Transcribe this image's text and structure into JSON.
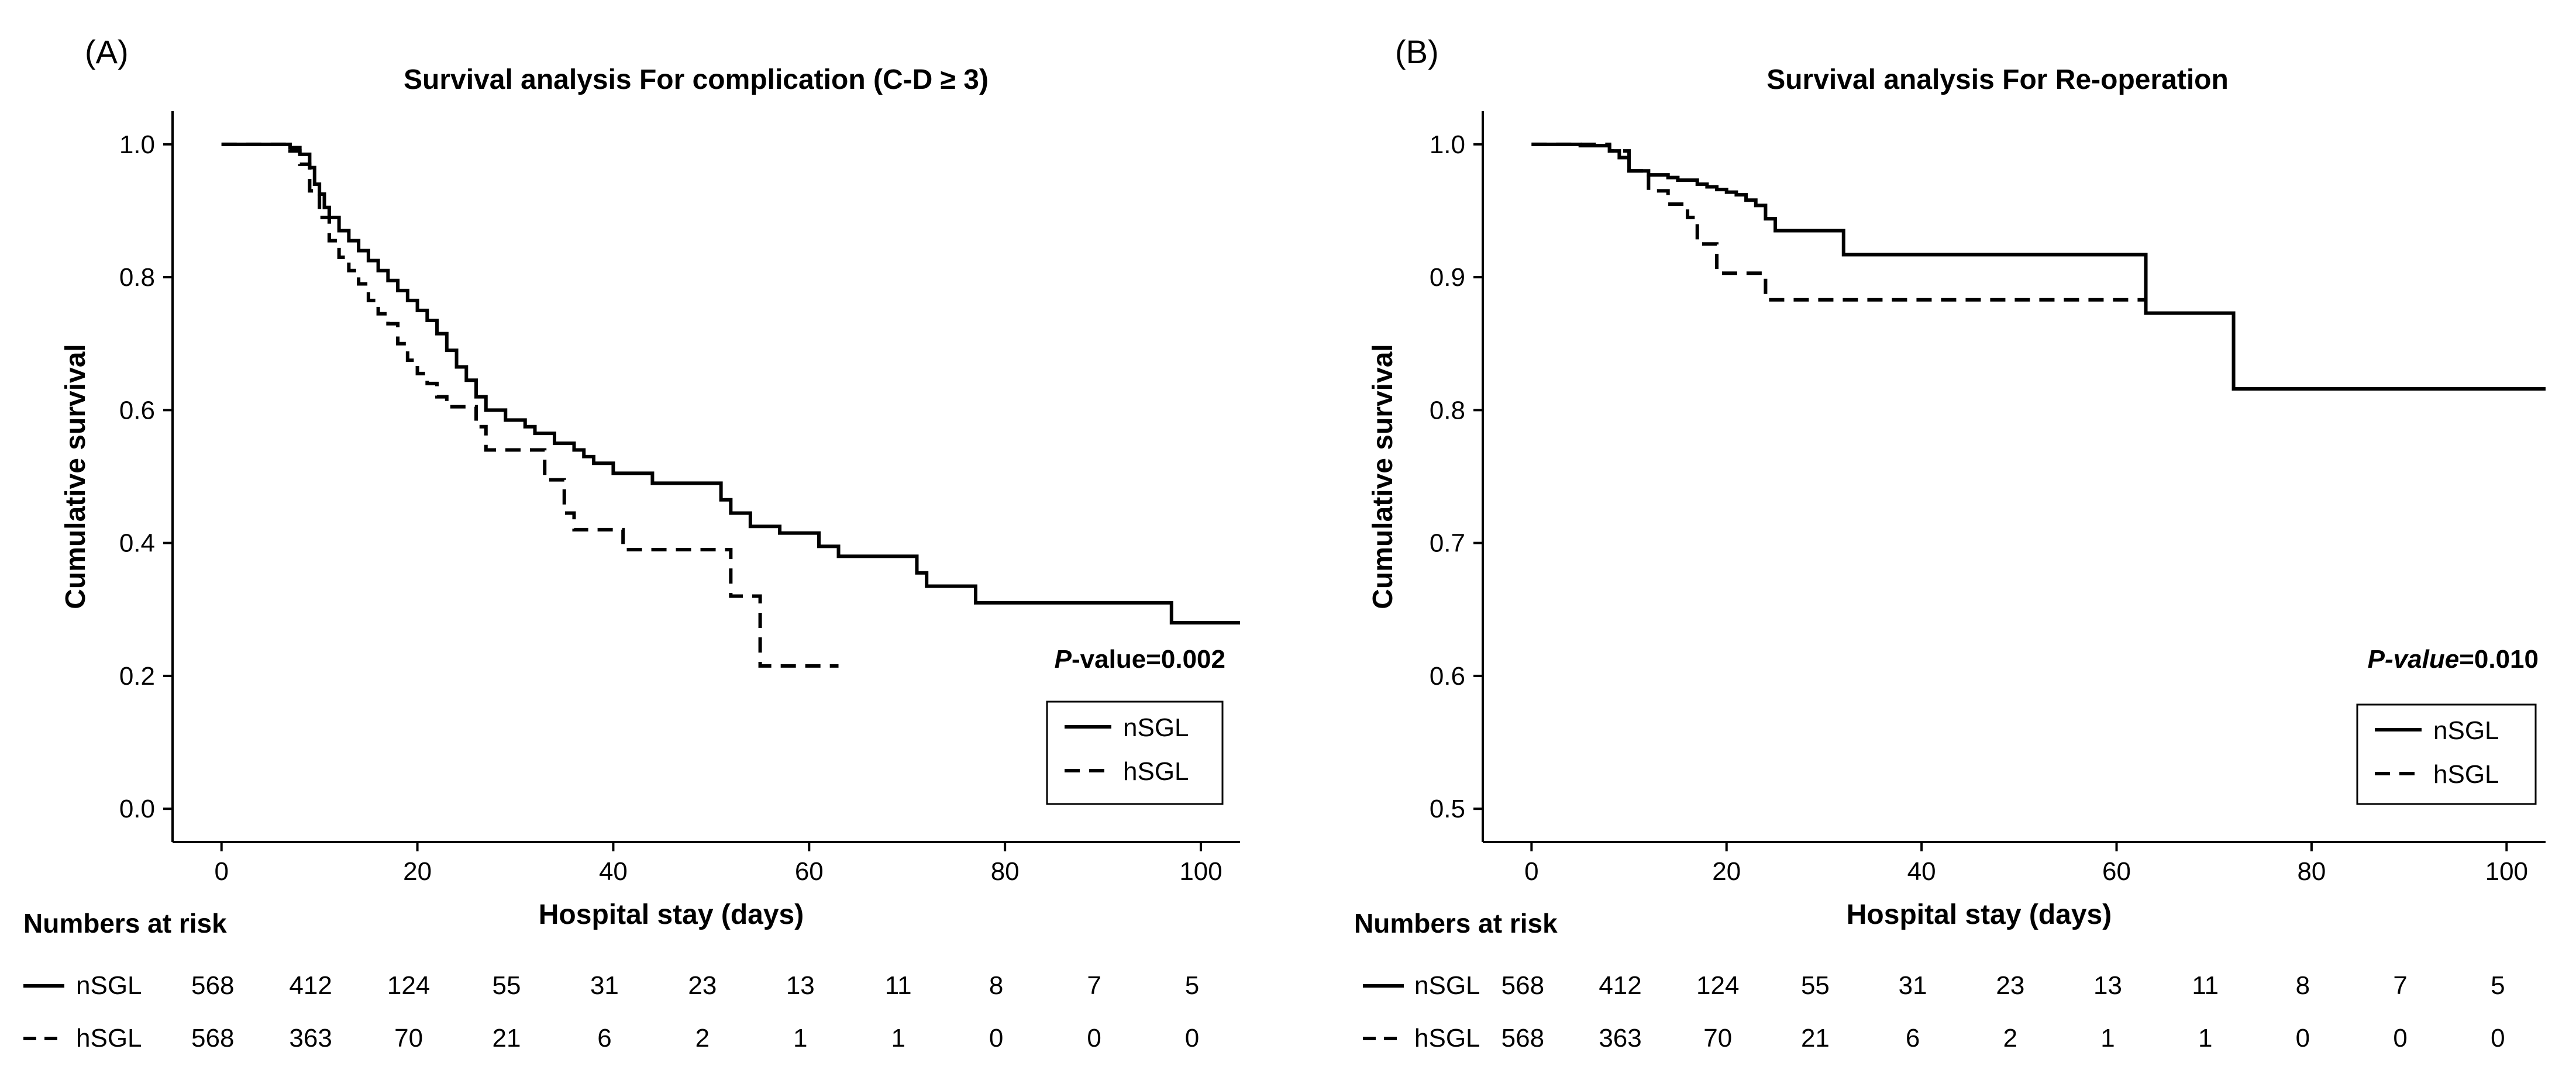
{
  "chart_data": [
    {
      "type": "line",
      "subtype": "kaplan-meier",
      "panel_label": "(A)",
      "title": "Survival analysis For complication (C-D ≥ 3)",
      "xlabel": "Hospital stay (days)",
      "ylabel": "Cumulative survival",
      "xlim": [
        -5,
        104
      ],
      "ylim": [
        -0.05,
        1.05
      ],
      "xticks": [
        0,
        20,
        40,
        60,
        80,
        100
      ],
      "xtick_labels": [
        "0",
        "20",
        "40",
        "60",
        "80",
        "100"
      ],
      "yticks": [
        0.0,
        0.2,
        0.4,
        0.6,
        0.8,
        1.0
      ],
      "ytick_labels": [
        "0.0",
        "0.2",
        "0.4",
        "0.6",
        "0.8",
        "1.0"
      ],
      "pvalue_prefix": "P",
      "pvalue_suffix": "-value=0.002",
      "legend": [
        {
          "name": "nSGL",
          "style": "solid"
        },
        {
          "name": "hSGL",
          "style": "dashed"
        }
      ],
      "series": [
        {
          "name": "nSGL",
          "style": "solid",
          "steps": [
            [
              0,
              1.0
            ],
            [
              7,
              0.995
            ],
            [
              8,
              0.985
            ],
            [
              9,
              0.965
            ],
            [
              9.5,
              0.94
            ],
            [
              10,
              0.925
            ],
            [
              10.5,
              0.905
            ],
            [
              11,
              0.89
            ],
            [
              12,
              0.87
            ],
            [
              13,
              0.855
            ],
            [
              14,
              0.84
            ],
            [
              15,
              0.825
            ],
            [
              16,
              0.81
            ],
            [
              17,
              0.795
            ],
            [
              18,
              0.78
            ],
            [
              19,
              0.765
            ],
            [
              20,
              0.75
            ],
            [
              21,
              0.735
            ],
            [
              22,
              0.715
            ],
            [
              23,
              0.69
            ],
            [
              24,
              0.665
            ],
            [
              25,
              0.645
            ],
            [
              26,
              0.62
            ],
            [
              27,
              0.6
            ],
            [
              29,
              0.585
            ],
            [
              31,
              0.575
            ],
            [
              32,
              0.565
            ],
            [
              34,
              0.55
            ],
            [
              36,
              0.54
            ],
            [
              37,
              0.53
            ],
            [
              38,
              0.52
            ],
            [
              40,
              0.505
            ],
            [
              44,
              0.49
            ],
            [
              51,
              0.465
            ],
            [
              52,
              0.445
            ],
            [
              54,
              0.425
            ],
            [
              57,
              0.415
            ],
            [
              61,
              0.395
            ],
            [
              63,
              0.38
            ],
            [
              71,
              0.355
            ],
            [
              72,
              0.335
            ],
            [
              77,
              0.31
            ],
            [
              97,
              0.28
            ],
            [
              104,
              0.28
            ]
          ]
        },
        {
          "name": "hSGL",
          "style": "dashed",
          "steps": [
            [
              0,
              1.0
            ],
            [
              7,
              0.99
            ],
            [
              8,
              0.97
            ],
            [
              9,
              0.93
            ],
            [
              10,
              0.89
            ],
            [
              11,
              0.855
            ],
            [
              12,
              0.83
            ],
            [
              13,
              0.81
            ],
            [
              14,
              0.79
            ],
            [
              15,
              0.765
            ],
            [
              16,
              0.745
            ],
            [
              17,
              0.73
            ],
            [
              18,
              0.7
            ],
            [
              19,
              0.675
            ],
            [
              20,
              0.655
            ],
            [
              21,
              0.64
            ],
            [
              22,
              0.62
            ],
            [
              23,
              0.605
            ],
            [
              26,
              0.575
            ],
            [
              27,
              0.54
            ],
            [
              33,
              0.495
            ],
            [
              35,
              0.445
            ],
            [
              36,
              0.42
            ],
            [
              41,
              0.39
            ],
            [
              52,
              0.32
            ],
            [
              54,
              0.32
            ],
            [
              55,
              0.215
            ],
            [
              63,
              0.215
            ]
          ]
        }
      ],
      "risk_table": {
        "title": "Numbers at risk",
        "times": [
          0,
          10,
          20,
          30,
          40,
          50,
          60,
          70,
          80,
          90,
          100
        ],
        "rows": [
          {
            "name": "nSGL",
            "style": "solid",
            "values": [
              "568",
              "412",
              "124",
              "55",
              "31",
              "23",
              "13",
              "11",
              "8",
              "7",
              "5"
            ]
          },
          {
            "name": "hSGL",
            "style": "dashed",
            "values": [
              "568",
              "363",
              "70",
              "21",
              "6",
              "2",
              "1",
              "1",
              "0",
              "0",
              "0"
            ]
          }
        ]
      }
    },
    {
      "type": "line",
      "subtype": "kaplan-meier",
      "panel_label": "(B)",
      "title": "Survival analysis For Re-operation",
      "xlabel": "Hospital stay (days)",
      "ylabel": "Cumulative survival",
      "xlim": [
        -5,
        104
      ],
      "ylim": [
        0.475,
        1.025
      ],
      "xticks": [
        0,
        20,
        40,
        60,
        80,
        100
      ],
      "xtick_labels": [
        "0",
        "20",
        "40",
        "60",
        "80",
        "100"
      ],
      "yticks": [
        0.5,
        0.6,
        0.7,
        0.8,
        0.9,
        1.0
      ],
      "ytick_labels": [
        "0.5",
        "0.6",
        "0.7",
        "0.8",
        "0.9",
        "1.0"
      ],
      "pvalue_prefix": "P-value",
      "pvalue_suffix": "=0.010",
      "legend": [
        {
          "name": "nSGL",
          "style": "solid"
        },
        {
          "name": "hSGL",
          "style": "dashed"
        }
      ],
      "series": [
        {
          "name": "nSGL",
          "style": "solid",
          "steps": [
            [
              0,
              1.0
            ],
            [
              5,
              0.999
            ],
            [
              8,
              0.995
            ],
            [
              9,
              0.99
            ],
            [
              10,
              0.98
            ],
            [
              12,
              0.977
            ],
            [
              14,
              0.975
            ],
            [
              15,
              0.973
            ],
            [
              17,
              0.97
            ],
            [
              18,
              0.968
            ],
            [
              19,
              0.966
            ],
            [
              20,
              0.964
            ],
            [
              21,
              0.962
            ],
            [
              22,
              0.958
            ],
            [
              23,
              0.954
            ],
            [
              24,
              0.944
            ],
            [
              25,
              0.935
            ],
            [
              32,
              0.917
            ],
            [
              63,
              0.873
            ],
            [
              72,
              0.816
            ],
            [
              104,
              0.816
            ]
          ]
        },
        {
          "name": "hSGL",
          "style": "dashed",
          "steps": [
            [
              0,
              1.0
            ],
            [
              8,
              0.995
            ],
            [
              10,
              0.98
            ],
            [
              12,
              0.965
            ],
            [
              14,
              0.955
            ],
            [
              16,
              0.945
            ],
            [
              17,
              0.925
            ],
            [
              19,
              0.903
            ],
            [
              24,
              0.883
            ],
            [
              63,
              0.883
            ]
          ]
        }
      ],
      "risk_table": {
        "title": "Numbers at risk",
        "times": [
          0,
          10,
          20,
          30,
          40,
          50,
          60,
          70,
          80,
          90,
          100
        ],
        "rows": [
          {
            "name": "nSGL",
            "style": "solid",
            "values": [
              "568",
              "412",
              "124",
              "55",
              "31",
              "23",
              "13",
              "11",
              "8",
              "7",
              "5"
            ]
          },
          {
            "name": "hSGL",
            "style": "dashed",
            "values": [
              "568",
              "363",
              "70",
              "21",
              "6",
              "2",
              "1",
              "1",
              "0",
              "0",
              "0"
            ]
          }
        ]
      }
    }
  ]
}
